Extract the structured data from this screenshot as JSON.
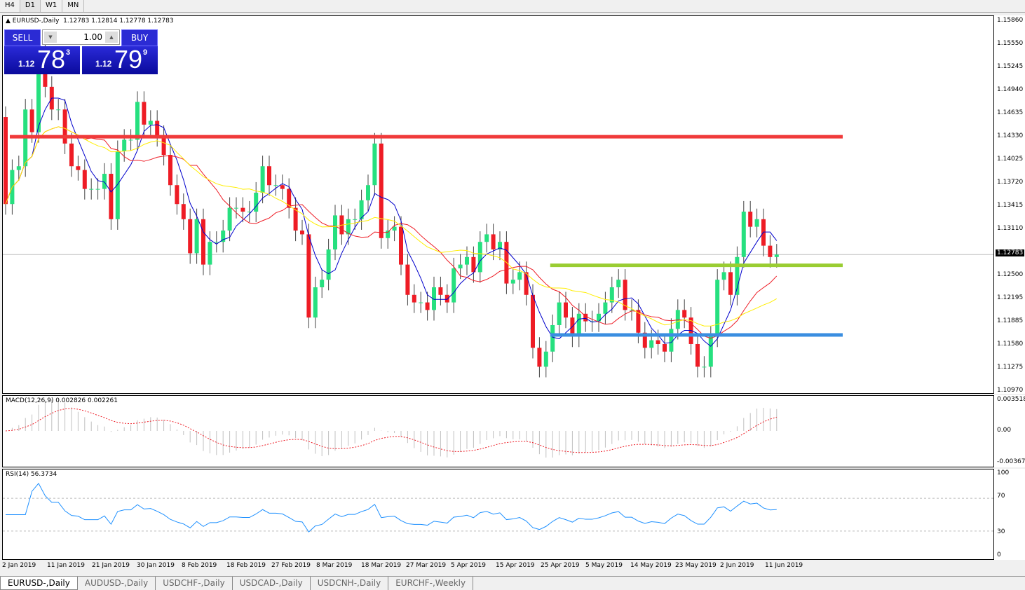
{
  "timeframes": [
    "H4",
    "D1",
    "W1",
    "MN"
  ],
  "active_timeframe": "D1",
  "chart": {
    "symbol_title": "EURUSD-,Daily",
    "ohlc_text": "1.12783 1.12814 1.12778 1.12783",
    "current_price": "1.12783",
    "price_ticks": [
      "1.15860",
      "1.15550",
      "1.15245",
      "1.14940",
      "1.14635",
      "1.14330",
      "1.14025",
      "1.13720",
      "1.13415",
      "1.13110",
      "1.12500",
      "1.12195",
      "1.11885",
      "1.11580",
      "1.11275",
      "1.10970"
    ],
    "price_range": [
      1.1097,
      1.1586
    ],
    "colors": {
      "bull": "#26e07f",
      "bear": "#ee1c25",
      "ma_fast": "#0000cc",
      "ma_mid": "#ee1c25",
      "ma_slow": "#ffee00",
      "macd_signal": "#ee1c25",
      "macd_hist": "#c0c0c0",
      "rsi": "#1e90ff"
    },
    "levels": [
      {
        "price": 1.1434,
        "from_date": "19 Mar 2019",
        "color": "#f03a3a"
      },
      {
        "price": 1.1264,
        "from_date": "25 Apr 2019",
        "color": "#9acd32"
      },
      {
        "price": 1.1172,
        "from_date": "25 Apr 2019",
        "color": "#3a8ee0"
      }
    ],
    "closes": [
      1.1345,
      1.139,
      1.1395,
      1.147,
      1.144,
      1.1545,
      1.15,
      1.147,
      1.147,
      1.1425,
      1.1395,
      1.139,
      1.1365,
      1.1365,
      1.1365,
      1.1385,
      1.1325,
      1.1415,
      1.143,
      1.143,
      1.148,
      1.145,
      1.1455,
      1.1435,
      1.141,
      1.137,
      1.1345,
      1.1325,
      1.128,
      1.1325,
      1.1265,
      1.1295,
      1.1295,
      1.131,
      1.134,
      1.134,
      1.1335,
      1.1335,
      1.136,
      1.1395,
      1.137,
      1.137,
      1.1365,
      1.134,
      1.131,
      1.1305,
      1.1195,
      1.1235,
      1.1245,
      1.1285,
      1.133,
      1.1305,
      1.1325,
      1.1325,
      1.135,
      1.137,
      1.1425,
      1.13,
      1.131,
      1.1315,
      1.1265,
      1.1225,
      1.1215,
      1.1215,
      1.1205,
      1.1235,
      1.1225,
      1.1215,
      1.126,
      1.1265,
      1.1275,
      1.1255,
      1.1295,
      1.1305,
      1.1285,
      1.1295,
      1.124,
      1.1245,
      1.1255,
      1.1225,
      1.1155,
      1.113,
      1.115,
      1.1185,
      1.1215,
      1.1195,
      1.117,
      1.12,
      1.119,
      1.119,
      1.12,
      1.1215,
      1.1235,
      1.1245,
      1.1205,
      1.1205,
      1.1175,
      1.1155,
      1.1165,
      1.116,
      1.115,
      1.118,
      1.1205,
      1.1195,
      1.116,
      1.113,
      1.113,
      1.117,
      1.1245,
      1.1255,
      1.1225,
      1.1275,
      1.1335,
      1.1315,
      1.1325,
      1.129,
      1.1275,
      1.12783
    ],
    "first_open": 1.146
  },
  "macd": {
    "title": "MACD(12,26,9) 0.002826 0.002261",
    "ticks": [
      "0.003518",
      "0.00",
      "-0.00367"
    ]
  },
  "rsi": {
    "title": "RSI(14) 56.3734",
    "ticks": [
      "100",
      "70",
      "30",
      "0"
    ],
    "levels": [
      70,
      30
    ]
  },
  "dates": [
    "2 Jan 2019",
    "11 Jan 2019",
    "21 Jan 2019",
    "30 Jan 2019",
    "8 Feb 2019",
    "18 Feb 2019",
    "27 Feb 2019",
    "8 Mar 2019",
    "18 Mar 2019",
    "27 Mar 2019",
    "5 Apr 2019",
    "15 Apr 2019",
    "25 Apr 2019",
    "5 May 2019",
    "14 May 2019",
    "23 May 2019",
    "2 Jun 2019",
    "11 Jun 2019"
  ],
  "trade": {
    "sell_label": "SELL",
    "buy_label": "BUY",
    "lot": "1.00",
    "sell": {
      "prefix": "1.12",
      "big": "78",
      "sup": "3"
    },
    "buy": {
      "prefix": "1.12",
      "big": "79",
      "sup": "9"
    }
  },
  "tabs": [
    "EURUSD-,Daily",
    "AUDUSD-,Daily",
    "USDCHF-,Daily",
    "USDCAD-,Daily",
    "USDCNH-,Daily",
    "EURCHF-,Weekly"
  ],
  "active_tab": "EURUSD-,Daily"
}
